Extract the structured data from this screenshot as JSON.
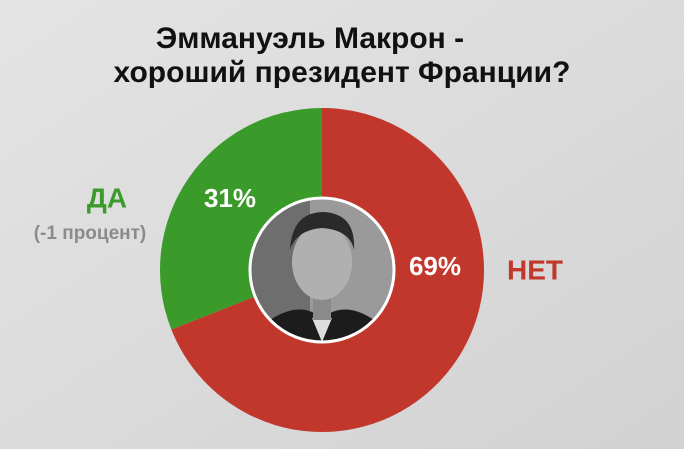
{
  "chart_data": {
    "type": "pie",
    "title": [
      "Эммануэль Макрон -",
      "хороший президент Франции?"
    ],
    "categories": [
      "ДА",
      "НЕТ"
    ],
    "values": [
      31,
      69
    ],
    "value_labels": [
      "31%",
      "69%"
    ],
    "colors": [
      "#3a9b2b",
      "#c1372c"
    ],
    "annotation": "(-1 процент)",
    "donut": true
  }
}
